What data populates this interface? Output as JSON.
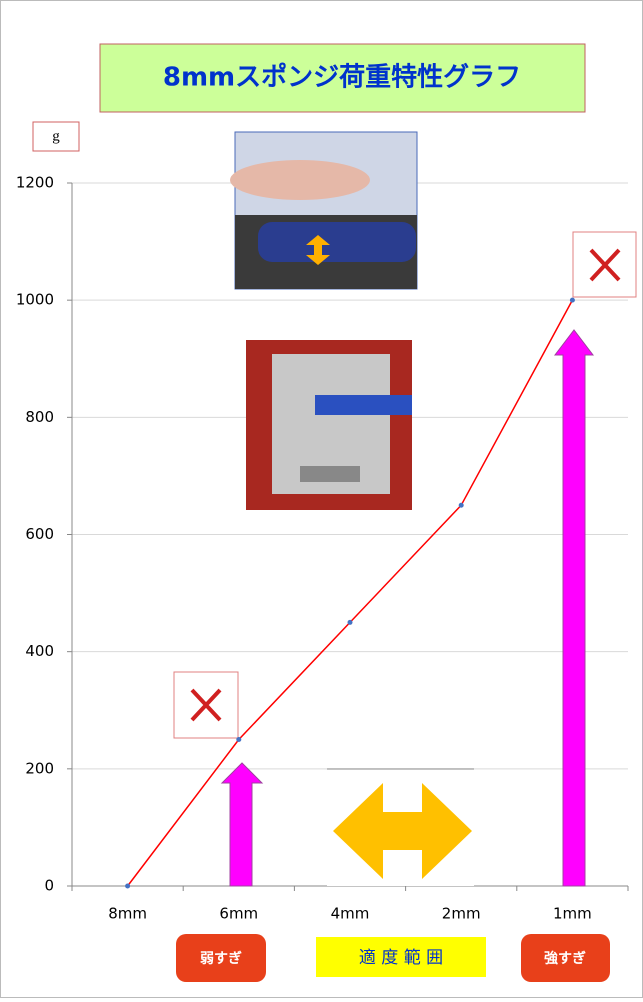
{
  "chart_data": {
    "type": "line",
    "title": "8mmスポンジ荷重特性グラフ",
    "y_label": "g",
    "categories": [
      "8mm",
      "6mm",
      "4mm",
      "2mm",
      "1mm"
    ],
    "values": [
      0,
      250,
      450,
      650,
      1000
    ],
    "color": "#ff0000",
    "ylim": [
      0,
      1200
    ],
    "yticks": [
      0,
      200,
      400,
      600,
      800,
      1000,
      1200
    ],
    "grid": true,
    "annotations": [
      "弱すぎ",
      "適 度 範 囲",
      "強すぎ"
    ]
  }
}
